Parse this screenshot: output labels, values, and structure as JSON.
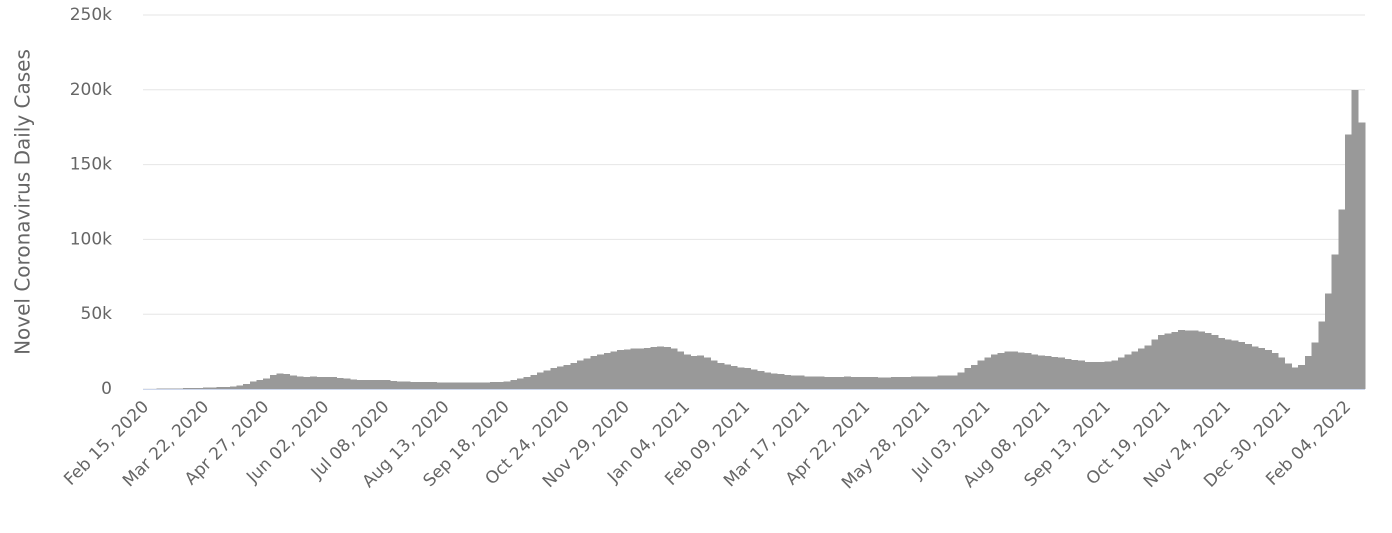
{
  "chart_data": {
    "type": "bar",
    "y_label": "Novel Coronavirus Daily Cases",
    "color": "#999999",
    "grid": true,
    "ylim": [
      0,
      250000
    ],
    "yticks": [
      0,
      {
        "value": 50000,
        "label": "50k"
      },
      {
        "value": 100000,
        "label": "100k"
      },
      {
        "value": 150000,
        "label": "150k"
      },
      {
        "value": 200000,
        "label": "200k"
      },
      {
        "value": 250000,
        "label": "250k"
      }
    ],
    "categories": [
      "Feb 15, 2020",
      null,
      null,
      null,
      null,
      null,
      null,
      null,
      null,
      "Mar 22, 2020",
      null,
      null,
      null,
      null,
      null,
      null,
      null,
      null,
      "Apr 27, 2020",
      null,
      null,
      null,
      null,
      null,
      null,
      null,
      null,
      "Jun 02, 2020",
      null,
      null,
      null,
      null,
      null,
      null,
      null,
      null,
      "Jul 08, 2020",
      null,
      null,
      null,
      null,
      null,
      null,
      null,
      null,
      "Aug 13, 2020",
      null,
      null,
      null,
      null,
      null,
      null,
      null,
      null,
      "Sep 18, 2020",
      null,
      null,
      null,
      null,
      null,
      null,
      null,
      null,
      "Oct 24, 2020",
      null,
      null,
      null,
      null,
      null,
      null,
      null,
      null,
      "Nov 29, 2020",
      null,
      null,
      null,
      null,
      null,
      null,
      null,
      null,
      "Jan 04, 2021",
      null,
      null,
      null,
      null,
      null,
      null,
      null,
      null,
      "Feb 09, 2021",
      null,
      null,
      null,
      null,
      null,
      null,
      null,
      null,
      "Mar 17, 2021",
      null,
      null,
      null,
      null,
      null,
      null,
      null,
      null,
      "Apr 22, 2021",
      null,
      null,
      null,
      null,
      null,
      null,
      null,
      null,
      "May 28, 2021",
      null,
      null,
      null,
      null,
      null,
      null,
      null,
      null,
      "Jul 03, 2021",
      null,
      null,
      null,
      null,
      null,
      null,
      null,
      null,
      "Aug 08, 2021",
      null,
      null,
      null,
      null,
      null,
      null,
      null,
      null,
      "Sep 13, 2021",
      null,
      null,
      null,
      null,
      null,
      null,
      null,
      null,
      "Oct 19, 2021",
      null,
      null,
      null,
      null,
      null,
      null,
      null,
      null,
      "Nov 24, 2021",
      null,
      null,
      null,
      null,
      null,
      null,
      null,
      null,
      "Dec 30, 2021",
      null,
      null,
      null,
      null,
      null,
      null,
      null,
      null,
      "Feb 04, 2022",
      null,
      null
    ],
    "values": [
      100,
      100,
      200,
      300,
      400,
      500,
      600,
      700,
      800,
      900,
      1000,
      1200,
      1500,
      1800,
      2500,
      3500,
      5000,
      6000,
      7000,
      9500,
      10500,
      10000,
      9000,
      8500,
      8000,
      8500,
      8000,
      8000,
      8000,
      7500,
      7000,
      6500,
      6000,
      6000,
      6000,
      6000,
      6000,
      5500,
      5000,
      5000,
      4800,
      4800,
      4600,
      4600,
      4500,
      4500,
      4500,
      4500,
      4400,
      4400,
      4500,
      4500,
      4600,
      4800,
      5000,
      6000,
      7000,
      8000,
      9500,
      11000,
      12500,
      14000,
      15000,
      16000,
      17500,
      19000,
      20500,
      22000,
      23000,
      24000,
      25000,
      26000,
      26500,
      27000,
      27000,
      27500,
      28000,
      28500,
      28000,
      27000,
      25000,
      23000,
      22000,
      22500,
      21000,
      19000,
      17500,
      16500,
      15500,
      14500,
      14000,
      13000,
      12000,
      11000,
      10500,
      10000,
      9500,
      9000,
      9000,
      8500,
      8500,
      8500,
      8000,
      8000,
      8000,
      8500,
      8000,
      8000,
      8000,
      8000,
      7800,
      7800,
      8000,
      8000,
      8000,
      8200,
      8500,
      8500,
      8500,
      9000,
      9000,
      9000,
      11000,
      14000,
      16000,
      19000,
      21000,
      23000,
      24000,
      25000,
      25000,
      24500,
      24000,
      23000,
      22500,
      22000,
      21500,
      21000,
      20000,
      19500,
      19000,
      18000,
      18000,
      18000,
      18500,
      19000,
      21000,
      23000,
      25000,
      27000,
      29000,
      33000,
      36000,
      37000,
      38000,
      39500,
      39000,
      39000,
      38500,
      37500,
      36000,
      34000,
      33000,
      32500,
      31500,
      30000,
      28500,
      27500,
      26000,
      24000,
      21000,
      17000,
      14500,
      16000,
      22000,
      31000,
      45000,
      64000,
      90000,
      120000,
      170000,
      200000,
      178000
    ]
  }
}
